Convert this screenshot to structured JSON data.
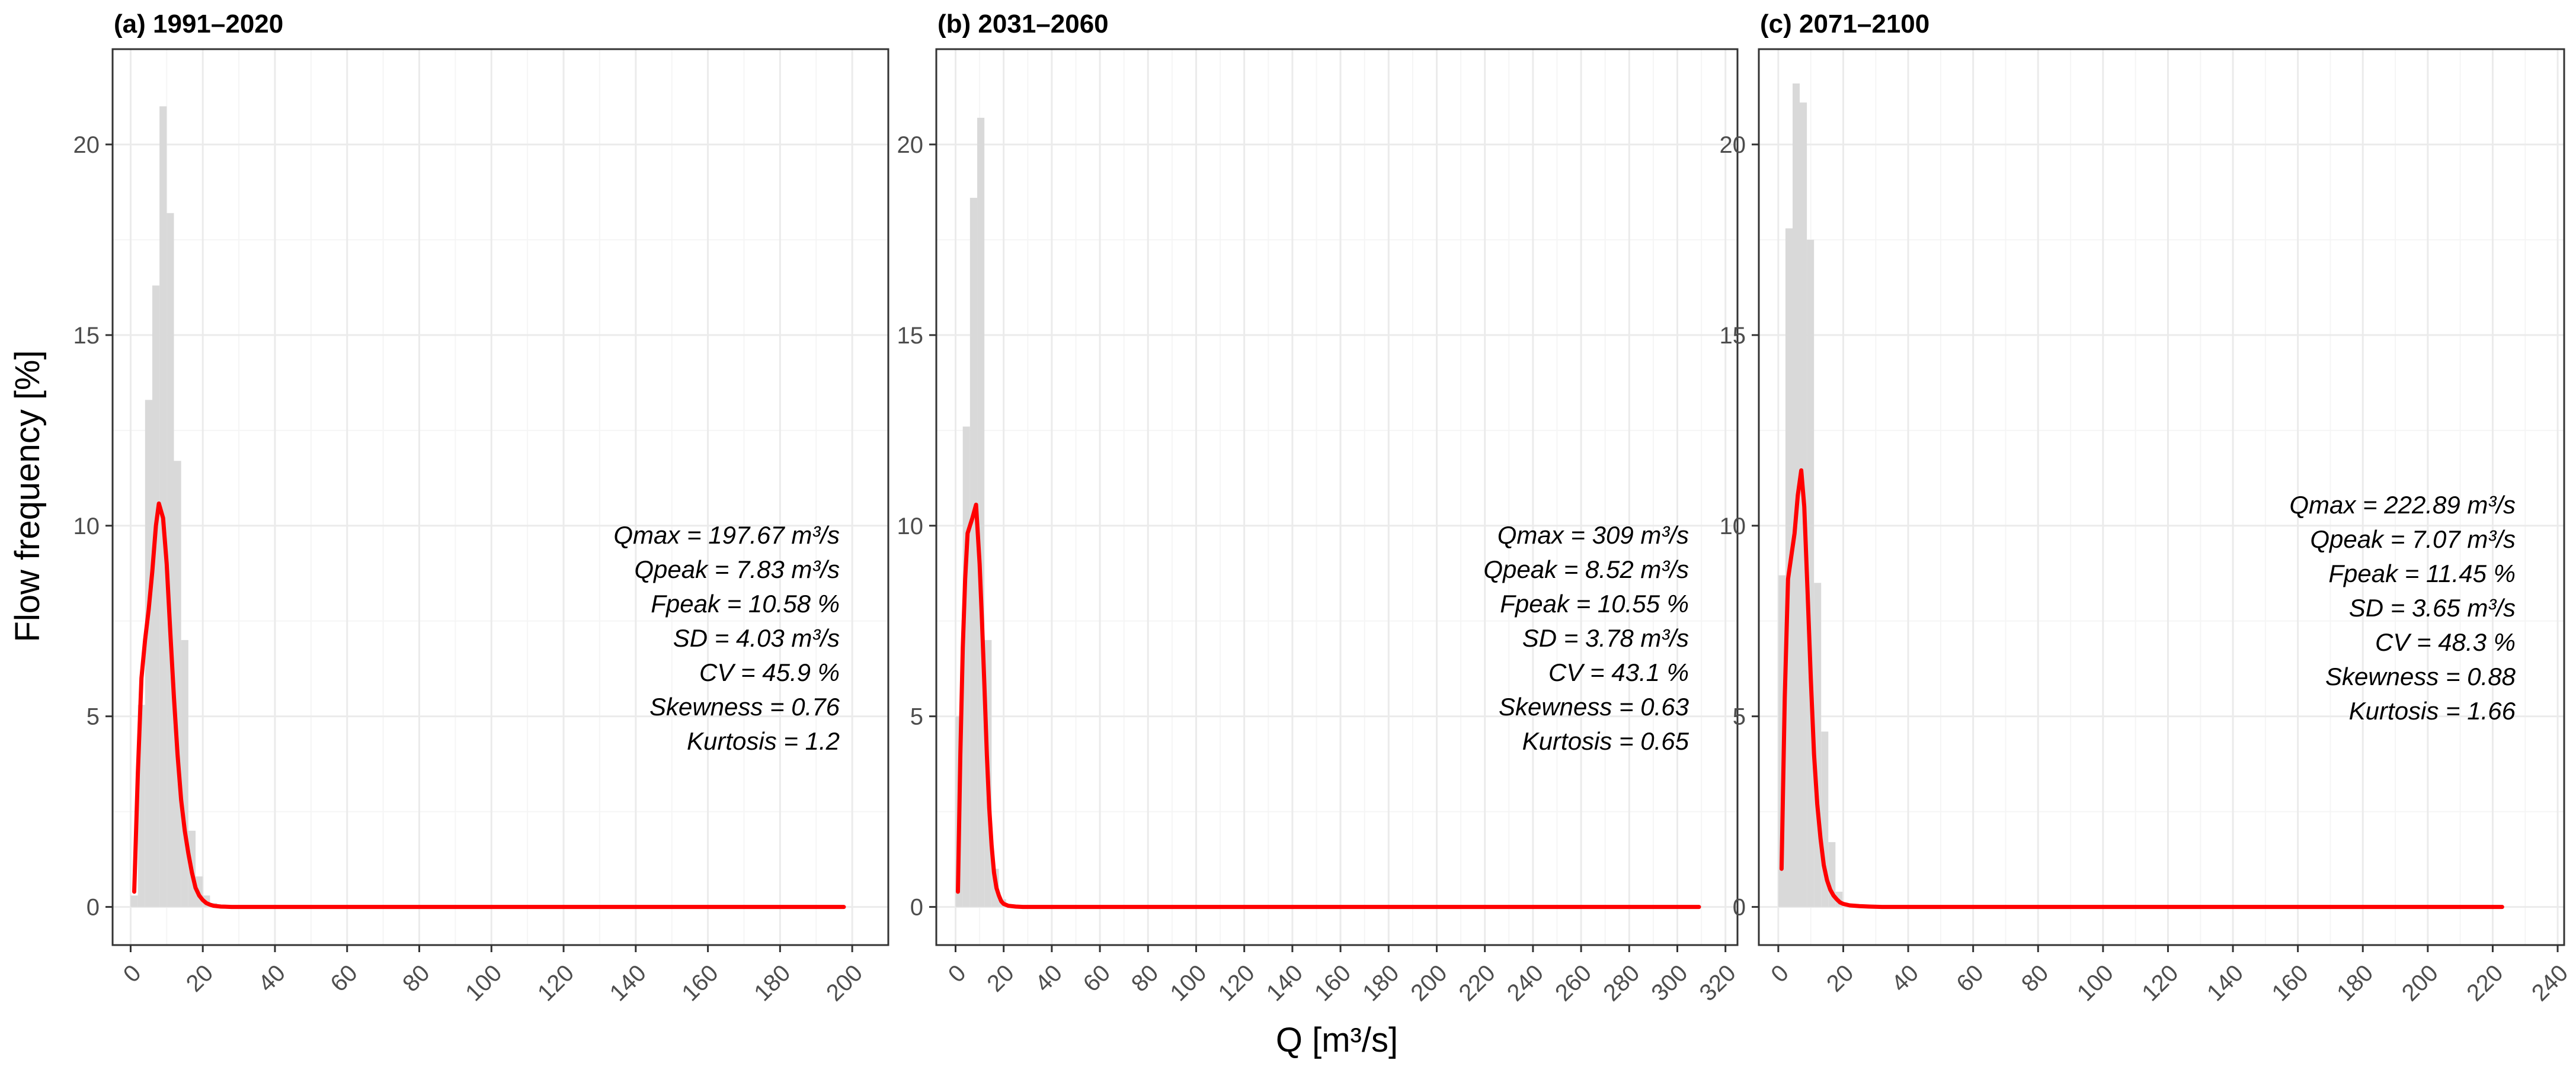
{
  "figure": {
    "ylabel": "Flow frequency [%]",
    "xlabel": "Q [m³/s]"
  },
  "colors": {
    "histogram_fill": "#d9d9d9",
    "density_line": "#ff0000",
    "grid_major": "#ebebeb",
    "grid_minor": "#f5f5f5",
    "panel_border": "#333333",
    "tick_text": "#4d4d4d"
  },
  "chart_data": [
    {
      "type": "bar",
      "title": "(a) 1991–2020",
      "xlabel": "Q [m³/s]",
      "ylabel": "Flow frequency [%]",
      "xlim": [
        -5,
        210
      ],
      "ylim": [
        -1,
        22.5
      ],
      "xticks": [
        "0",
        "20",
        "40",
        "60",
        "80",
        "100",
        "120",
        "140",
        "160",
        "180",
        "200"
      ],
      "yticks": [
        "0",
        "5",
        "10",
        "15",
        "20"
      ],
      "grid": true,
      "bin_width": 2,
      "histogram": {
        "x": [
          1,
          3,
          5,
          7,
          9,
          11,
          13,
          15,
          17,
          19,
          21,
          23,
          25
        ],
        "values": [
          0.3,
          5.3,
          13.3,
          16.3,
          21.0,
          18.2,
          11.7,
          7.0,
          2.0,
          0.8,
          0.3,
          0.1,
          0.05
        ]
      },
      "density": {
        "name": "",
        "x": [
          1,
          2,
          3,
          4,
          5,
          6,
          7,
          7.83,
          9,
          10,
          11,
          12,
          13,
          14,
          15,
          16,
          17,
          18,
          19,
          20,
          21,
          22,
          23,
          25,
          28,
          32,
          40,
          60,
          100,
          150,
          197.67
        ],
        "y": [
          0.4,
          3.5,
          6.0,
          7.0,
          7.8,
          8.8,
          10.0,
          10.58,
          10.2,
          9.0,
          7.2,
          5.5,
          4.0,
          2.8,
          2.0,
          1.4,
          0.9,
          0.5,
          0.3,
          0.18,
          0.1,
          0.06,
          0.03,
          0.01,
          0.0,
          0.0,
          0.0,
          0.0,
          0.0,
          0.0,
          0.0
        ]
      },
      "annotations": [
        "Qmax = 197.67 m³/s",
        "Qpeak = 7.83 m³/s",
        "Fpeak = 10.58 %",
        "SD = 4.03 m³/s",
        "CV = 45.9 %",
        "Skewness = 0.76",
        "Kurtosis = 1.2"
      ]
    },
    {
      "type": "bar",
      "title": "(b) 2031–2060",
      "xlabel": "Q [m³/s]",
      "ylabel": "Flow frequency [%]",
      "xlim": [
        -8,
        325
      ],
      "ylim": [
        -1,
        22.5
      ],
      "xticks": [
        "0",
        "20",
        "40",
        "60",
        "80",
        "100",
        "120",
        "140",
        "160",
        "180",
        "200",
        "220",
        "240",
        "260",
        "280",
        "300",
        "320"
      ],
      "yticks": [
        "0",
        "5",
        "10",
        "15",
        "20"
      ],
      "grid": true,
      "bin_width": 3,
      "histogram": {
        "x": [
          1.5,
          4.5,
          7.5,
          10.5,
          13.5,
          16.5,
          19.5,
          22.5
        ],
        "values": [
          5.0,
          12.6,
          18.6,
          20.7,
          7.0,
          1.0,
          0.2,
          0.05
        ]
      },
      "density": {
        "name": "",
        "x": [
          1,
          2,
          3,
          4,
          5,
          6,
          7,
          8.52,
          10,
          11,
          12,
          13,
          14,
          15,
          16,
          17,
          18,
          19,
          20,
          22,
          25,
          28,
          32,
          40,
          60,
          100,
          200,
          309
        ],
        "y": [
          0.4,
          4.0,
          6.8,
          8.6,
          9.8,
          10.0,
          10.2,
          10.55,
          9.0,
          7.5,
          5.8,
          4.0,
          2.6,
          1.6,
          0.9,
          0.5,
          0.3,
          0.15,
          0.08,
          0.03,
          0.01,
          0.0,
          0.0,
          0.0,
          0.0,
          0.0,
          0.0,
          0.0
        ]
      },
      "annotations": [
        "Qmax = 309 m³/s",
        "Qpeak = 8.52 m³/s",
        "Fpeak = 10.55 %",
        "SD = 3.78 m³/s",
        "CV = 43.1 %",
        "Skewness = 0.63",
        "Kurtosis = 0.65"
      ]
    },
    {
      "type": "bar",
      "title": "(c) 2071–2100",
      "xlabel": "Q [m³/s]",
      "ylabel": "Flow frequency [%]",
      "xlim": [
        -6,
        242
      ],
      "ylim": [
        -1,
        22.5
      ],
      "xticks": [
        "0",
        "20",
        "40",
        "60",
        "80",
        "100",
        "120",
        "140",
        "160",
        "180",
        "200",
        "220",
        "240"
      ],
      "yticks": [
        "0",
        "5",
        "10",
        "15",
        "20"
      ],
      "grid": true,
      "bin_width": 2.2,
      "histogram": {
        "x": [
          1.1,
          3.3,
          5.5,
          7.7,
          9.9,
          12.1,
          14.3,
          16.5,
          18.7
        ],
        "values": [
          8.7,
          17.8,
          21.6,
          21.1,
          17.5,
          8.5,
          4.6,
          1.7,
          0.4
        ]
      },
      "density": {
        "name": "",
        "x": [
          1,
          2,
          3,
          4,
          5,
          6,
          7.07,
          8,
          9,
          10,
          11,
          12,
          13,
          14,
          15,
          16,
          17,
          18,
          19,
          20,
          22,
          25,
          28,
          32,
          40,
          60,
          100,
          150,
          222.89
        ],
        "y": [
          1.0,
          5.5,
          8.6,
          9.2,
          9.8,
          10.8,
          11.45,
          10.5,
          8.3,
          6.0,
          4.0,
          2.7,
          1.8,
          1.1,
          0.7,
          0.45,
          0.3,
          0.2,
          0.12,
          0.08,
          0.04,
          0.02,
          0.01,
          0.0,
          0.0,
          0.0,
          0.0,
          0.0,
          0.0
        ]
      },
      "annotations": [
        "Qmax = 222.89 m³/s",
        "Qpeak = 7.07 m³/s",
        "Fpeak = 11.45 %",
        "SD = 3.65 m³/s",
        "CV = 48.3 %",
        "Skewness = 0.88",
        "Kurtosis = 1.66"
      ]
    }
  ]
}
